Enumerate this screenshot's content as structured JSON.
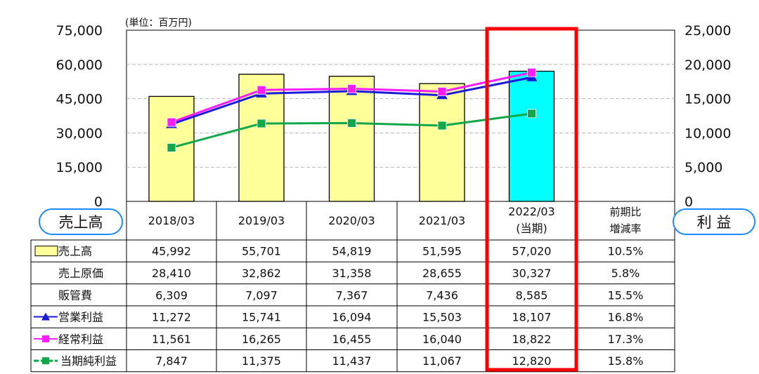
{
  "chart_data": {
    "type": "bar",
    "unit_label": "(単位：百万円)",
    "categories": [
      "2018/03",
      "2019/03",
      "2020/03",
      "2021/03",
      "2022/03"
    ],
    "category_lines": [
      [
        "2018/03"
      ],
      [
        "2019/03"
      ],
      [
        "2020/03"
      ],
      [
        "2021/03"
      ],
      [
        "2022/03",
        "(当期)"
      ]
    ],
    "highlight_index": 4,
    "y_left": {
      "min": 0,
      "max": 75000,
      "ticks": [
        "0",
        "15,000",
        "30,000",
        "45,000",
        "60,000",
        "75,000"
      ]
    },
    "y_right": {
      "min": 0,
      "max": 25000,
      "ticks": [
        "0",
        "5,000",
        "10,000",
        "15,000",
        "20,000",
        "25,000"
      ]
    },
    "bar_series": {
      "name": "売上高",
      "values": [
        45992,
        55701,
        54819,
        51595,
        57020
      ]
    },
    "line_series": [
      {
        "name": "営業利益",
        "values": [
          11272,
          15741,
          16094,
          15503,
          18107
        ],
        "color": "#1a1adc",
        "marker": "triangle"
      },
      {
        "name": "経常利益",
        "values": [
          11561,
          16265,
          16455,
          16040,
          18822
        ],
        "color": "#ff1aff",
        "marker": "square"
      },
      {
        "name": "当期純利益",
        "values": [
          7847,
          11375,
          11437,
          11067,
          12820
        ],
        "color": "#10a84a",
        "marker": "square"
      }
    ],
    "colors": {
      "bar": "#ffff99",
      "bar_highlight": "#00ffff",
      "highlight_frame": "#ff0000",
      "badge_border": "#1a8cff"
    },
    "left_badge": "売上高",
    "right_badge": "利 益",
    "change_header": [
      "前期比",
      "増減率"
    ],
    "table_rows": [
      {
        "label": "売上高",
        "legend": "bar",
        "values": [
          "45,992",
          "55,701",
          "54,819",
          "51,595",
          "57,020"
        ],
        "change": "10.5%"
      },
      {
        "label": "売上原価",
        "legend": "none",
        "values": [
          "28,410",
          "32,862",
          "31,358",
          "28,655",
          "30,327"
        ],
        "change": "5.8%"
      },
      {
        "label": "販管費",
        "legend": "none",
        "values": [
          "6,309",
          "7,097",
          "7,367",
          "7,436",
          "8,585"
        ],
        "change": "15.5%"
      },
      {
        "label": "営業利益",
        "legend": "triangle",
        "values": [
          "11,272",
          "15,741",
          "16,094",
          "15,503",
          "18,107"
        ],
        "change": "16.8%"
      },
      {
        "label": "経常利益",
        "legend": "square-magenta",
        "values": [
          "11,561",
          "16,265",
          "16,455",
          "16,040",
          "18,822"
        ],
        "change": "17.3%"
      },
      {
        "label": "当期純利益",
        "legend": "square-green",
        "values": [
          "7,847",
          "11,375",
          "11,437",
          "11,067",
          "12,820"
        ],
        "change": "15.8%"
      }
    ]
  }
}
